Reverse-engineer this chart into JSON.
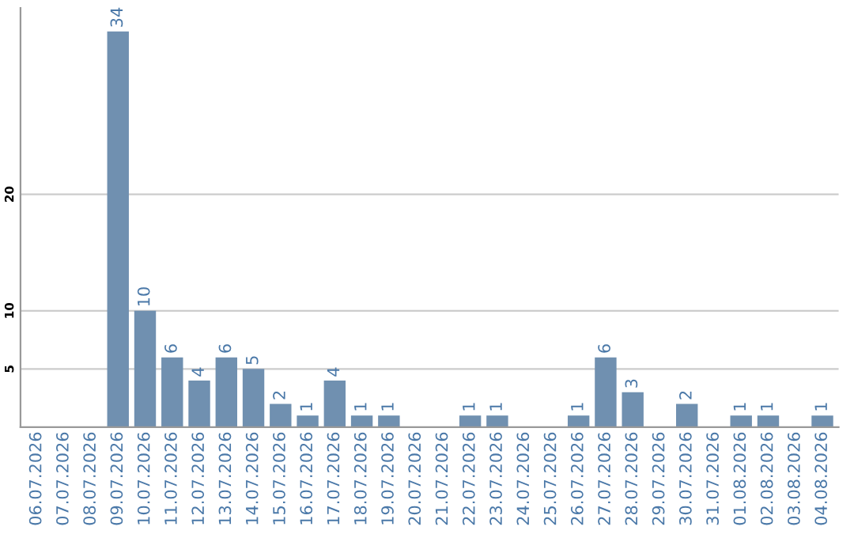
{
  "chart_data": {
    "type": "bar",
    "categories": [
      "06.07.2026",
      "07.07.2026",
      "08.07.2026",
      "09.07.2026",
      "10.07.2026",
      "11.07.2026",
      "12.07.2026",
      "13.07.2026",
      "14.07.2026",
      "15.07.2026",
      "16.07.2026",
      "17.07.2026",
      "18.07.2026",
      "19.07.2026",
      "20.07.2026",
      "21.07.2026",
      "22.07.2026",
      "23.07.2026",
      "24.07.2026",
      "25.07.2026",
      "26.07.2026",
      "27.07.2026",
      "28.07.2026",
      "29.07.2026",
      "30.07.2026",
      "31.07.2026",
      "01.08.2026",
      "02.08.2026",
      "03.08.2026",
      "04.08.2026"
    ],
    "values": [
      0,
      0,
      0,
      34,
      10,
      6,
      4,
      6,
      5,
      2,
      1,
      4,
      1,
      1,
      0,
      0,
      1,
      1,
      0,
      0,
      1,
      6,
      3,
      0,
      2,
      0,
      1,
      1,
      0,
      1
    ],
    "value_labels": [
      null,
      null,
      null,
      "34",
      "10",
      "6",
      "4",
      "6",
      "5",
      "2",
      "1",
      "4",
      "1",
      "1",
      null,
      null,
      "1",
      "1",
      null,
      null,
      "1",
      "6",
      "3",
      null,
      "2",
      null,
      "1",
      "1",
      null,
      "1"
    ],
    "color": "#7090b0",
    "ylim": [
      0,
      36
    ],
    "yticks": [
      5,
      10,
      20
    ],
    "grid": "y"
  }
}
